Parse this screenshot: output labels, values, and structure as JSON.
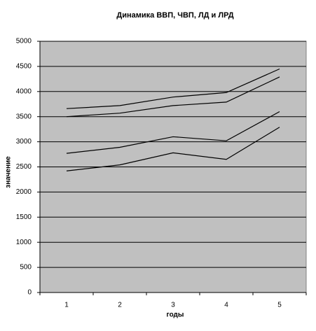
{
  "chart_data": {
    "type": "line",
    "title": "Динамика ВВП, ЧВП, ЛД и ЛРД",
    "x_label": "годы",
    "y_label": "значение",
    "categories": [
      "1",
      "2",
      "3",
      "4",
      "5"
    ],
    "series": [
      {
        "color": "#000000",
        "values": [
          3660,
          3720,
          3890,
          3980,
          4450
        ]
      },
      {
        "color": "#000000",
        "values": [
          3500,
          3570,
          3720,
          3790,
          4290
        ]
      },
      {
        "color": "#000000",
        "values": [
          2770,
          2890,
          3100,
          3020,
          3600
        ]
      },
      {
        "color": "#000000",
        "values": [
          2420,
          2540,
          2780,
          2650,
          3290
        ]
      }
    ],
    "ylim": [
      0,
      5000
    ],
    "yticks": [
      0,
      500,
      1000,
      1500,
      2000,
      2500,
      3000,
      3500,
      4000,
      4500,
      5000
    ],
    "grid": true,
    "plot_background": "#c0c0c0"
  }
}
